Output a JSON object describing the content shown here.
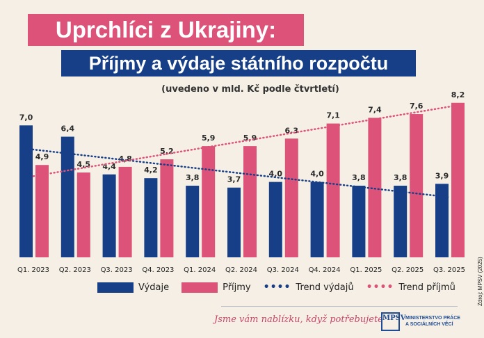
{
  "title": "Uprchlíci z Ukrajiny:",
  "subtitle": "Příjmy a výdaje státního rozpočtu",
  "note": "(uvedeno v mld. Kč podle čtvrtletí)",
  "colors": {
    "vydaje": "#163f87",
    "prijmy": "#dd5279",
    "background": "#f5efe5"
  },
  "chart_data": {
    "type": "bar",
    "categories": [
      "Q1. 2023",
      "Q2. 2023",
      "Q3. 2023",
      "Q4. 2023",
      "Q1. 2024",
      "Q2. 2024",
      "Q3. 2024",
      "Q4. 2024",
      "Q1. 2025",
      "Q2. 2025",
      "Q3. 2025"
    ],
    "series": [
      {
        "name": "Výdaje",
        "values": [
          7.0,
          6.4,
          4.4,
          4.2,
          3.8,
          3.7,
          4.0,
          4.0,
          3.8,
          3.8,
          3.9
        ],
        "labels": [
          "7,0",
          "6,4",
          "4,4",
          "4,2",
          "3,8",
          "3,7",
          "4,0",
          "4,0",
          "3,8",
          "3,8",
          "3,9"
        ]
      },
      {
        "name": "Příjmy",
        "values": [
          4.9,
          4.5,
          4.8,
          5.2,
          5.9,
          5.9,
          6.3,
          7.1,
          7.4,
          7.6,
          8.2
        ],
        "labels": [
          "4,9",
          "4,5",
          "4,8",
          "5,2",
          "5,9",
          "5,9",
          "6,3",
          "7,1",
          "7,4",
          "7,6",
          "8,2"
        ]
      }
    ],
    "trendlines": [
      {
        "name": "Trend výdajů",
        "series": "Výdaje",
        "style": "dotted"
      },
      {
        "name": "Trend příjmů",
        "series": "Příjmy",
        "style": "dotted"
      }
    ],
    "ylim": [
      0,
      8.5
    ],
    "grid": false,
    "legend": "bottom"
  },
  "legend": {
    "vydaje": "Výdaje",
    "prijmy": "Příjmy",
    "trend_vydaju": "Trend výdajů",
    "trend_prijmu": "Trend příjmů"
  },
  "footer": {
    "slogan": "Jsme vám nablízku, když potřebujete",
    "logo_text": "MPSV",
    "ministry": "MINISTERSTVO PRÁCE A SOCIÁLNÍCH VĚCÍ",
    "source": "Zdroj: MPSV (2025)"
  }
}
